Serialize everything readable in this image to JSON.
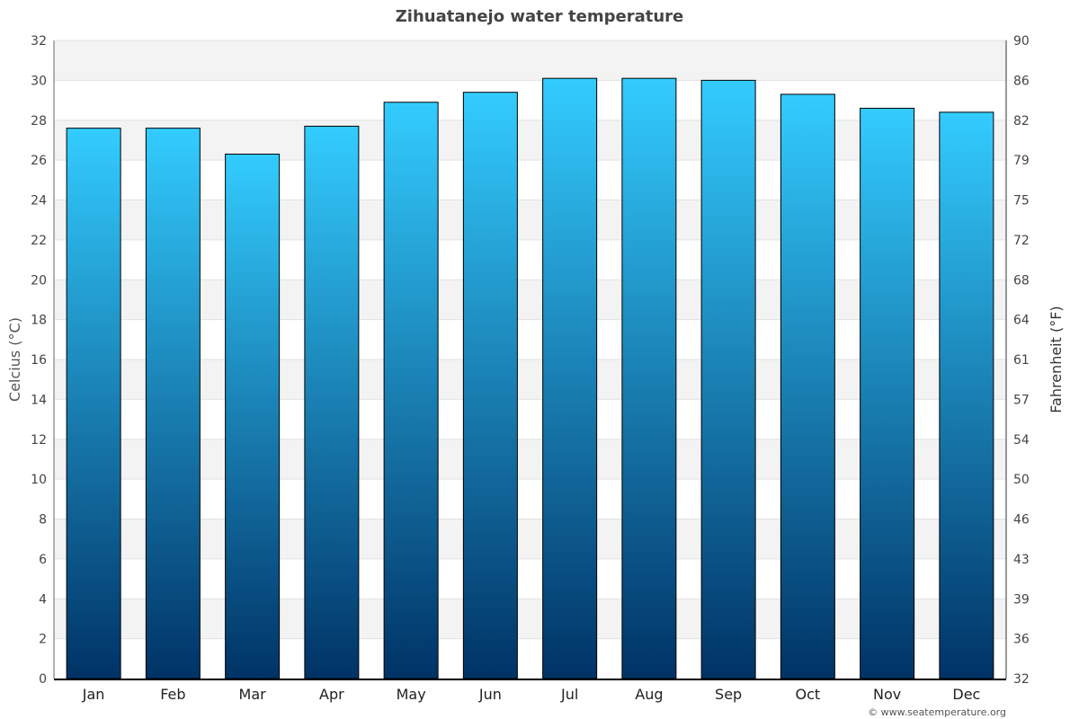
{
  "chart_data": {
    "type": "bar",
    "title": "Zihuatanejo water temperature",
    "ylabel": "Celcius (°C)",
    "ylabel_right": "Fahrenheit (°F)",
    "categories": [
      "Jan",
      "Feb",
      "Mar",
      "Apr",
      "May",
      "Jun",
      "Jul",
      "Aug",
      "Sep",
      "Oct",
      "Nov",
      "Dec"
    ],
    "values": [
      27.6,
      27.6,
      26.3,
      27.7,
      28.9,
      29.4,
      30.1,
      30.1,
      30.0,
      29.3,
      28.6,
      28.4
    ],
    "ylim": [
      0,
      32
    ],
    "yticks": [
      0,
      2,
      4,
      6,
      8,
      10,
      12,
      14,
      16,
      18,
      20,
      22,
      24,
      26,
      28,
      30,
      32
    ],
    "yticks_right": [
      "32",
      "36",
      "39",
      "43",
      "46",
      "50",
      "54",
      "57",
      "61",
      "64",
      "68",
      "72",
      "75",
      "79",
      "82",
      "86",
      "90"
    ],
    "grid": true,
    "colors": {
      "bar_top": "#33ccff",
      "bar_bottom": "#003366",
      "band": "#f3f3f3"
    }
  },
  "credit": "© www.seatemperature.org"
}
